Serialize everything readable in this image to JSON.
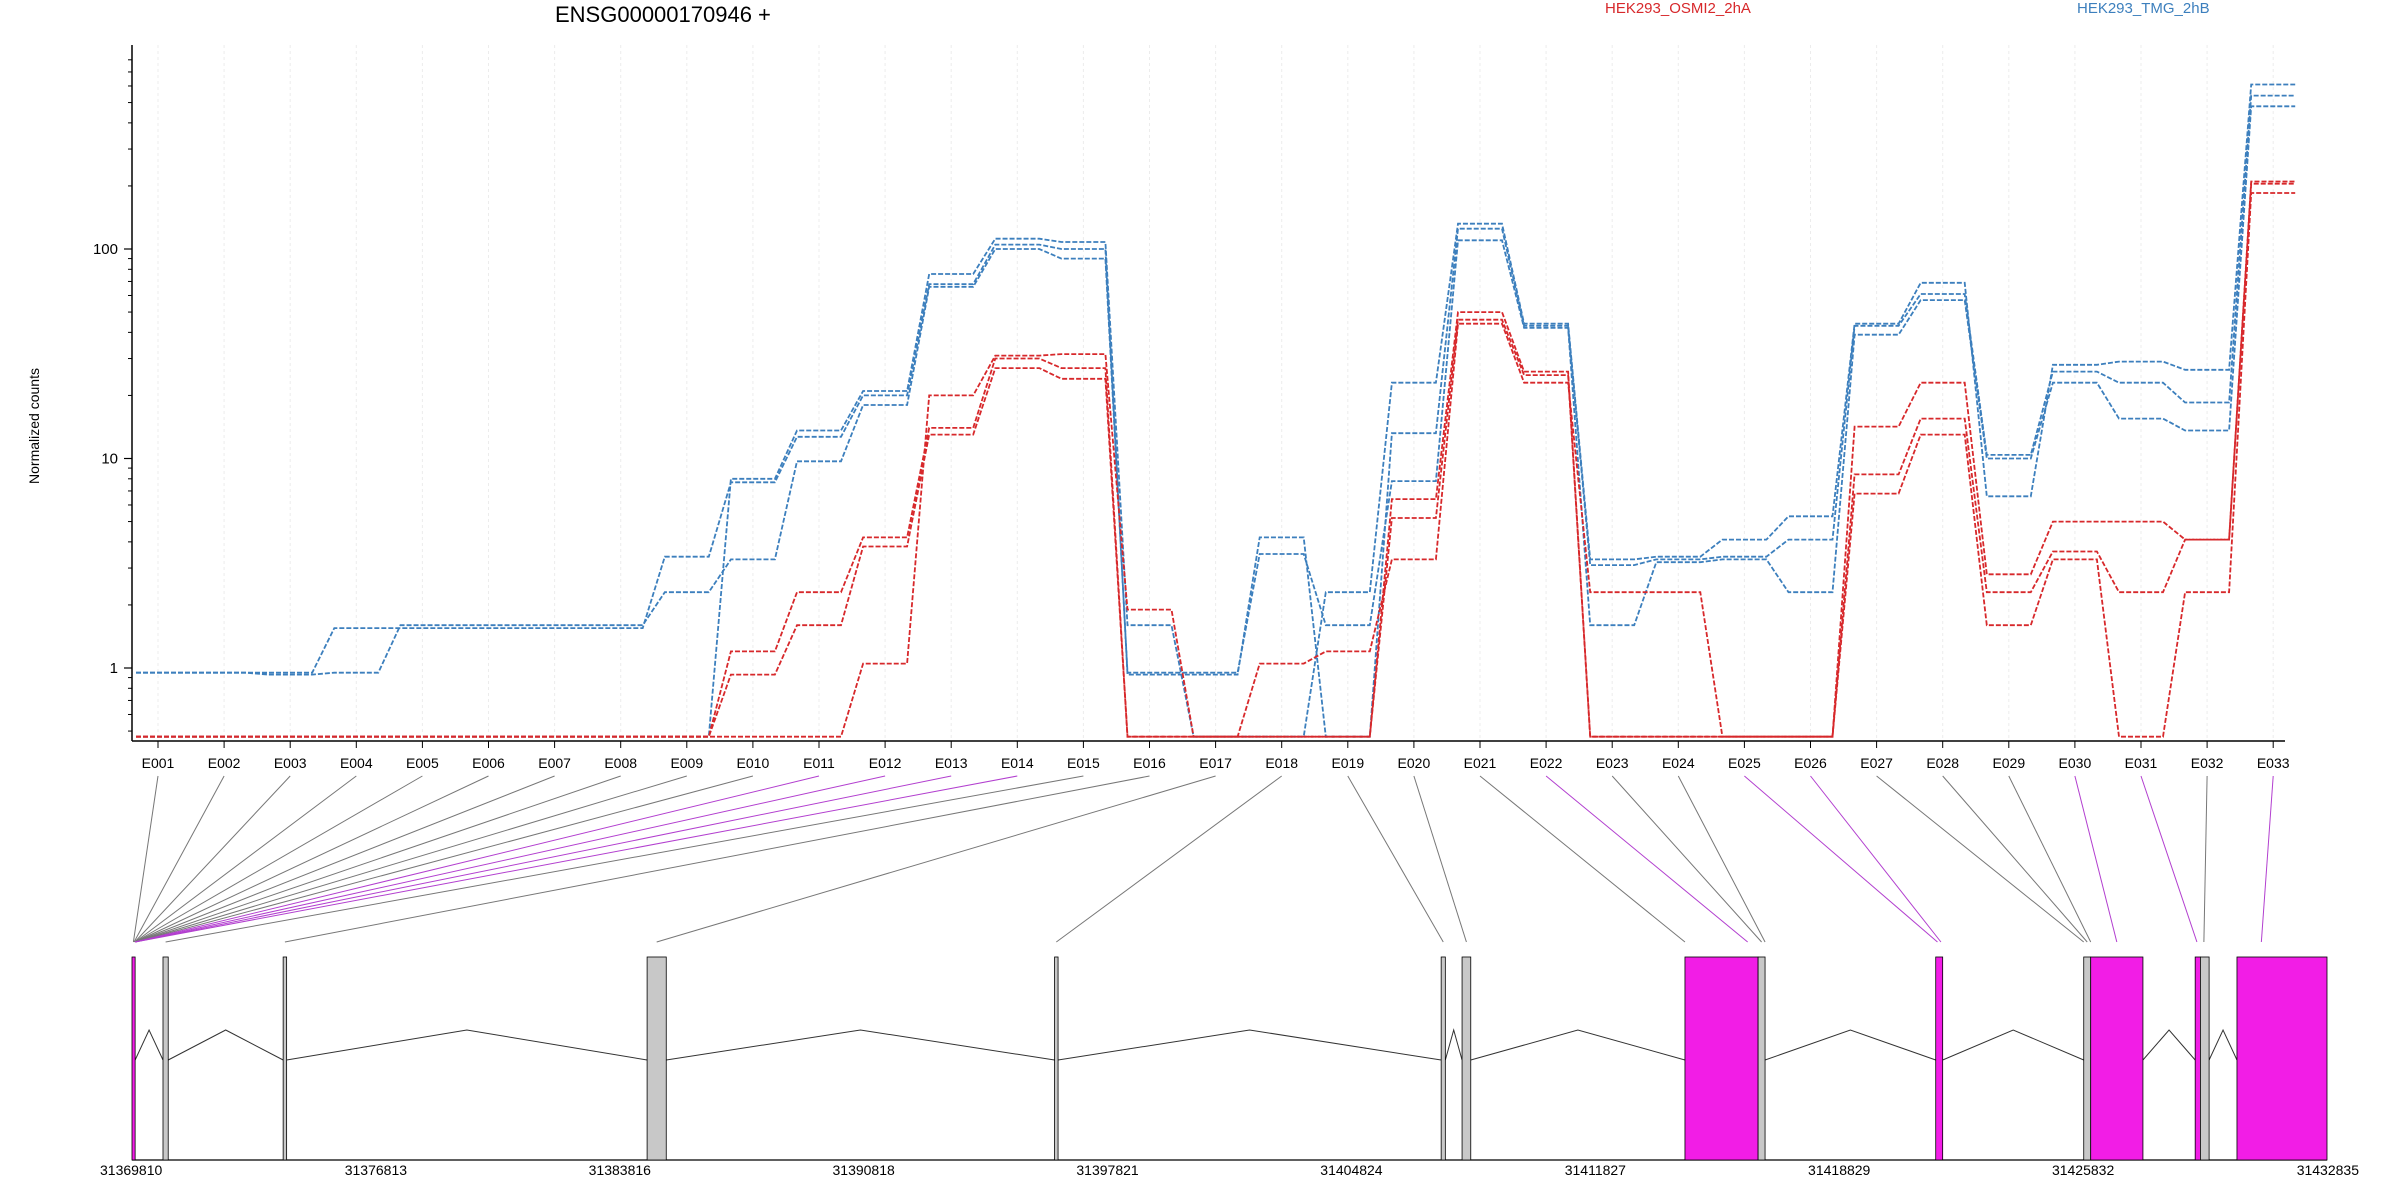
{
  "chart_data": {
    "type": "line",
    "title": "ENSG00000170946 +",
    "ylabel": "Normalized counts",
    "yscale": "log",
    "ylim": [
      0.4,
      800
    ],
    "y_ticks": [
      "1",
      "10",
      "100"
    ],
    "categories": [
      "E001",
      "E002",
      "E003",
      "E004",
      "E005",
      "E006",
      "E007",
      "E008",
      "E009",
      "E010",
      "E011",
      "E012",
      "E013",
      "E014",
      "E015",
      "E016",
      "E017",
      "E018",
      "E019",
      "E020",
      "E021",
      "E022",
      "E023",
      "E024",
      "E025",
      "E026",
      "E027",
      "E028",
      "E029",
      "E030",
      "E031",
      "E032",
      "E033"
    ],
    "legend": [
      {
        "name": "HEK293_OSMI2_2hA",
        "color": "#d7282b"
      },
      {
        "name": "HEK293_TMG_2hB",
        "color": "#3c7fbd"
      }
    ],
    "series": [
      {
        "group": "blue",
        "color": "#3c7fbd",
        "values": [
          0.95,
          0.95,
          0.93,
          0.95,
          1.6,
          1.6,
          1.6,
          1.6,
          2.3,
          3.3,
          9.7,
          18,
          66,
          100,
          90,
          0.95,
          0.95,
          3.5,
          1.6,
          7.8,
          110,
          42,
          1.6,
          3.2,
          3.3,
          2.3,
          39,
          57,
          10,
          23,
          15.5,
          13.6,
          480
        ]
      },
      {
        "group": "blue",
        "color": "#3c7fbd",
        "values": [
          0.95,
          0.95,
          0.95,
          1.55,
          1.55,
          1.55,
          1.55,
          1.55,
          3.4,
          7.7,
          12.7,
          20,
          68,
          105,
          100,
          0.93,
          0.93,
          4.2,
          0.47,
          13.2,
          125,
          43,
          3.1,
          3.3,
          3.4,
          4.1,
          43,
          61,
          10.4,
          26,
          23,
          18.5,
          540
        ]
      },
      {
        "group": "blue",
        "color": "#3c7fbd",
        "values": [
          0.47,
          0.47,
          0.47,
          0.47,
          0.47,
          0.47,
          0.47,
          0.47,
          0.47,
          8,
          13.6,
          21,
          76,
          112,
          108,
          1.6,
          0.47,
          0.47,
          2.3,
          23,
          132,
          44,
          3.3,
          3.4,
          4.1,
          5.3,
          44,
          69,
          6.6,
          28,
          29,
          26.5,
          610
        ]
      },
      {
        "group": "red",
        "color": "#d7282b",
        "values": [
          0.47,
          0.47,
          0.47,
          0.47,
          0.47,
          0.47,
          0.47,
          0.47,
          0.47,
          0.93,
          1.6,
          3.8,
          13,
          27,
          24,
          0.47,
          0.47,
          1.05,
          1.2,
          3.3,
          44,
          23,
          2.3,
          2.3,
          0.47,
          0.47,
          6.8,
          13,
          1.6,
          3.3,
          0.47,
          2.3,
          185
        ]
      },
      {
        "group": "red",
        "color": "#d7282b",
        "values": [
          0.47,
          0.47,
          0.47,
          0.47,
          0.47,
          0.47,
          0.47,
          0.47,
          0.47,
          1.2,
          2.3,
          4.2,
          14,
          30,
          27,
          0.47,
          0.47,
          0.47,
          0.47,
          5.2,
          46,
          25,
          0.47,
          0.47,
          0.47,
          0.47,
          8.4,
          15.5,
          2.3,
          3.6,
          2.3,
          4.1,
          205
        ]
      },
      {
        "group": "red",
        "color": "#d7282b",
        "values": [
          0.47,
          0.47,
          0.47,
          0.47,
          0.47,
          0.47,
          0.47,
          0.47,
          0.47,
          0.47,
          0.47,
          1.05,
          20,
          31,
          31.5,
          1.9,
          0.47,
          0.47,
          0.47,
          6.4,
          50,
          26,
          0.47,
          0.47,
          0.47,
          0.47,
          14.2,
          23,
          2.8,
          5,
          5,
          4.1,
          210
        ]
      }
    ],
    "exon_links": [
      {
        "exon": "E001",
        "highlight": false
      },
      {
        "exon": "E002",
        "highlight": false
      },
      {
        "exon": "E003",
        "highlight": false
      },
      {
        "exon": "E004",
        "highlight": false
      },
      {
        "exon": "E005",
        "highlight": false
      },
      {
        "exon": "E006",
        "highlight": false
      },
      {
        "exon": "E007",
        "highlight": false
      },
      {
        "exon": "E008",
        "highlight": false
      },
      {
        "exon": "E009",
        "highlight": false
      },
      {
        "exon": "E010",
        "highlight": false
      },
      {
        "exon": "E011",
        "highlight": true
      },
      {
        "exon": "E012",
        "highlight": true
      },
      {
        "exon": "E013",
        "highlight": true
      },
      {
        "exon": "E014",
        "highlight": true
      },
      {
        "exon": "E015",
        "highlight": false
      },
      {
        "exon": "E016",
        "highlight": false
      },
      {
        "exon": "E017",
        "highlight": false
      },
      {
        "exon": "E018",
        "highlight": false
      },
      {
        "exon": "E019",
        "highlight": false
      },
      {
        "exon": "E020",
        "highlight": false
      },
      {
        "exon": "E021",
        "highlight": false
      },
      {
        "exon": "E022",
        "highlight": true
      },
      {
        "exon": "E023",
        "highlight": false
      },
      {
        "exon": "E024",
        "highlight": false
      },
      {
        "exon": "E025",
        "highlight": true
      },
      {
        "exon": "E026",
        "highlight": true
      },
      {
        "exon": "E027",
        "highlight": false
      },
      {
        "exon": "E028",
        "highlight": false
      },
      {
        "exon": "E029",
        "highlight": false
      },
      {
        "exon": "E030",
        "highlight": true
      },
      {
        "exon": "E031",
        "highlight": true
      },
      {
        "exon": "E032",
        "highlight": false
      },
      {
        "exon": "E033",
        "highlight": true
      }
    ],
    "gene_model": {
      "start": 31369810,
      "end": 31432835,
      "axis_ticks": [
        31369810,
        31376813,
        31383816,
        31390818,
        31397821,
        31404824,
        31411827,
        31418829,
        31425832,
        31432835
      ],
      "exons": [
        {
          "start": 31369810,
          "end": 31369900,
          "color": "#f21de6"
        },
        {
          "start": 31370700,
          "end": 31370850,
          "color": "#c8c8c8"
        },
        {
          "start": 31374150,
          "end": 31374250,
          "color": "#c8c8c8"
        },
        {
          "start": 31384600,
          "end": 31385150,
          "color": "#c8c8c8"
        },
        {
          "start": 31396300,
          "end": 31396400,
          "color": "#c8c8c8"
        },
        {
          "start": 31407400,
          "end": 31407520,
          "color": "#c8c8c8"
        },
        {
          "start": 31408000,
          "end": 31408250,
          "color": "#c8c8c8"
        },
        {
          "start": 31414400,
          "end": 31416500,
          "color": "#f21de6"
        },
        {
          "start": 31416500,
          "end": 31416700,
          "color": "#c8c8c8"
        },
        {
          "start": 31421600,
          "end": 31421800,
          "color": "#f21de6"
        },
        {
          "start": 31425850,
          "end": 31426050,
          "color": "#c8c8c8"
        },
        {
          "start": 31426050,
          "end": 31427550,
          "color": "#f21de6"
        },
        {
          "start": 31429050,
          "end": 31429200,
          "color": "#f21de6"
        },
        {
          "start": 31429200,
          "end": 31429450,
          "color": "#c8c8c8"
        },
        {
          "start": 31430250,
          "end": 31432835,
          "color": "#f21de6"
        }
      ]
    }
  }
}
